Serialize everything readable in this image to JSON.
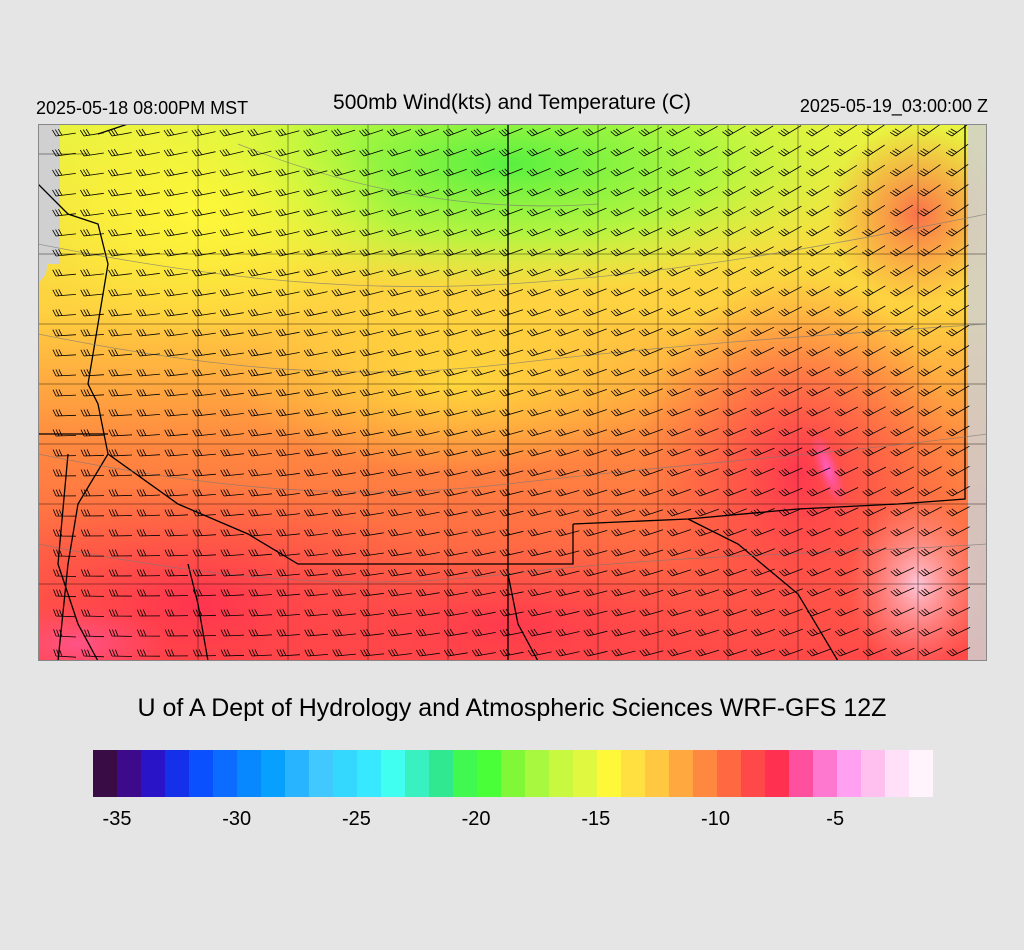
{
  "header": {
    "local_time": "2025-05-18 08:00PM MST",
    "title": "500mb Wind(kts) and Temperature (C)",
    "valid_time": "2025-05-19_03:00:00 Z"
  },
  "footer": {
    "credit": "U of A Dept of Hydrology and Atmospheric Sciences WRF-GFS 12Z"
  },
  "colorbar": {
    "colors": [
      "#3a0c46",
      "#3e0a8c",
      "#2a14c8",
      "#1430e8",
      "#0a50ff",
      "#0c6cff",
      "#0888ff",
      "#08a0ff",
      "#28b4ff",
      "#40c8ff",
      "#34d8ff",
      "#38e8ff",
      "#40fff0",
      "#38f0c0",
      "#30e890",
      "#40f850",
      "#48ff38",
      "#80f838",
      "#a8f840",
      "#c8f840",
      "#e0f840",
      "#fff838",
      "#ffe040",
      "#ffc840",
      "#ffa840",
      "#ff8840",
      "#ff6840",
      "#ff4848",
      "#ff3050",
      "#ff50a0",
      "#ff78d0",
      "#ffa0f0",
      "#ffc0f0",
      "#ffe0f8",
      "#fff4fc"
    ],
    "tick_labels": [
      "-35",
      "-30",
      "-25",
      "-20",
      "-15",
      "-10",
      "-5"
    ],
    "tick_values": [
      -35,
      -30,
      -25,
      -20,
      -15,
      -10,
      -5
    ]
  },
  "map": {
    "field": "500mb temperature shading with wind barbs and state/county boundaries",
    "barb_speed_kts_typical": 35,
    "temperature_range_c": [
      -20,
      -6
    ]
  }
}
